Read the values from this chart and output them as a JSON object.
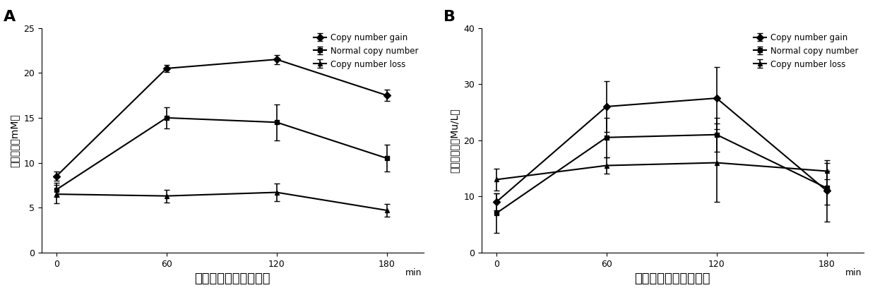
{
  "timepoints": [
    0,
    60,
    120,
    180
  ],
  "panel_A": {
    "title": "A",
    "ylabel": "血糖水平（mM）",
    "xlabel": "口服葡萄糖后时间节点",
    "ylim": [
      0,
      25
    ],
    "yticks": [
      0,
      5,
      10,
      15,
      20,
      25
    ],
    "series": {
      "Copy number gain": {
        "y": [
          8.5,
          20.5,
          21.5,
          17.5
        ],
        "yerr": [
          0.5,
          0.4,
          0.5,
          0.6
        ]
      },
      "Normal copy number": {
        "y": [
          7.0,
          15.0,
          14.5,
          10.5
        ],
        "yerr": [
          0.8,
          1.2,
          2.0,
          1.5
        ]
      },
      "Copy number loss": {
        "y": [
          6.5,
          6.3,
          6.7,
          4.7
        ],
        "yerr": [
          1.0,
          0.7,
          1.0,
          0.7
        ]
      }
    }
  },
  "panel_B": {
    "title": "B",
    "ylabel": "胰岛素水平（Mu/L）",
    "xlabel": "口服葡萄糖后时间节点",
    "ylim": [
      0,
      40
    ],
    "yticks": [
      0,
      10,
      20,
      30,
      40
    ],
    "series": {
      "Copy number gain": {
        "y": [
          9.0,
          26.0,
          27.5,
          11.0
        ],
        "yerr": [
          1.5,
          4.5,
          5.5,
          5.5
        ]
      },
      "Normal copy number": {
        "y": [
          7.0,
          20.5,
          21.0,
          11.5
        ],
        "yerr": [
          3.5,
          3.5,
          3.0,
          3.0
        ]
      },
      "Copy number loss": {
        "y": [
          13.0,
          15.5,
          16.0,
          14.5
        ],
        "yerr": [
          2.0,
          1.5,
          7.0,
          1.5
        ]
      }
    }
  },
  "series_order": [
    "Copy number gain",
    "Normal copy number",
    "Copy number loss"
  ],
  "marker_styles": {
    "Copy number gain": "D",
    "Normal copy number": "s",
    "Copy number loss": "^"
  },
  "color": "black",
  "markersize": 5,
  "linewidth": 1.5,
  "capsize": 3,
  "elinewidth": 1.2,
  "legend_fontsize": 8.5,
  "axis_label_fontsize": 10,
  "xlabel_fontsize": 13,
  "tick_fontsize": 9,
  "panel_label_fontsize": 16
}
